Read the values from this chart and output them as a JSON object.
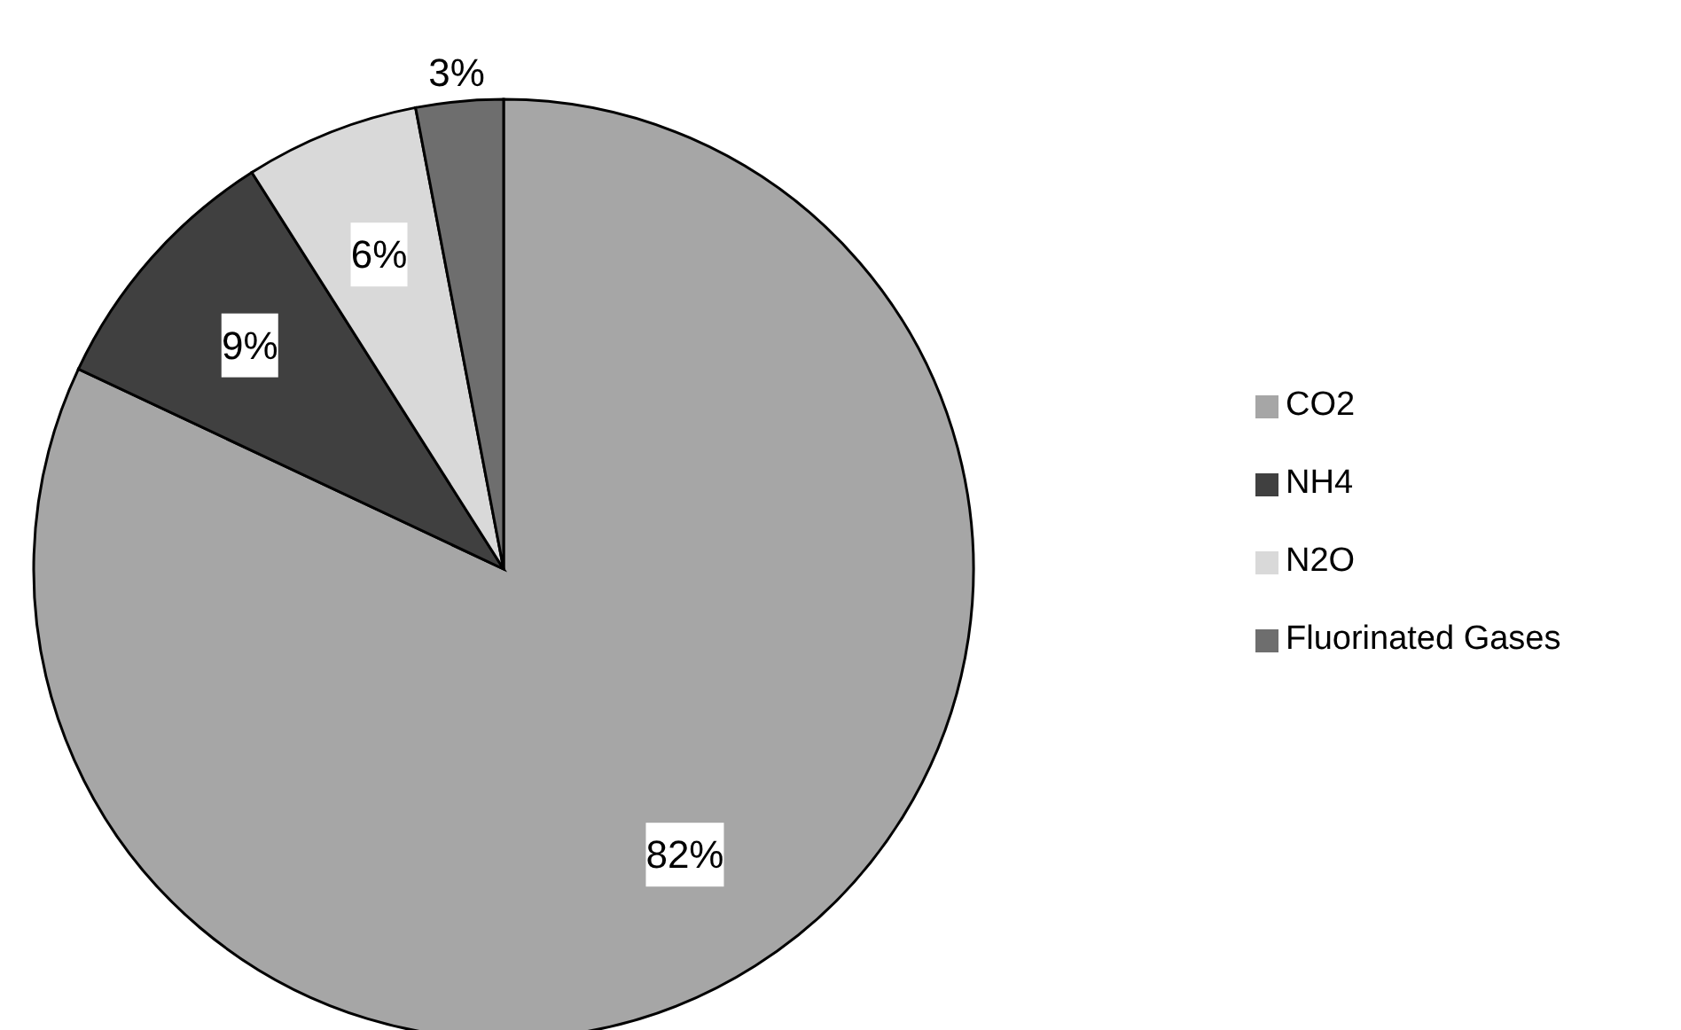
{
  "chart_data": {
    "type": "pie",
    "categories": [
      "CO2",
      "NH4",
      "N2O",
      "Fluorinated Gases"
    ],
    "values": [
      82,
      9,
      6,
      3
    ],
    "colors": [
      "#a6a6a6",
      "#404040",
      "#d9d9d9",
      "#6e6e6e"
    ],
    "value_labels": [
      "82%",
      "9%",
      "6%",
      "3%"
    ],
    "legend": "right"
  }
}
